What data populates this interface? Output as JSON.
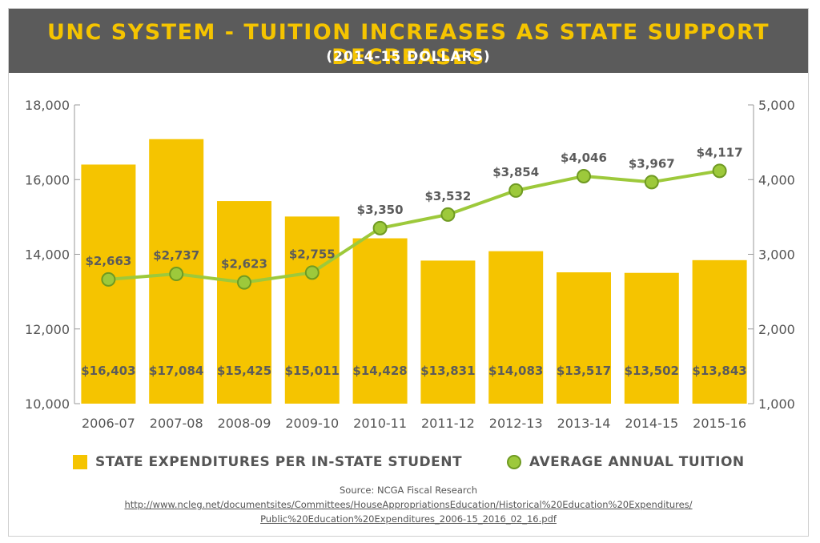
{
  "header": {
    "title": "UNC SYSTEM - TUITION INCREASES AS STATE SUPPORT DECREASES",
    "subtitle": "(2014-15 DOLLARS)"
  },
  "legend": {
    "bars_label": "STATE EXPENDITURES PER IN-STATE STUDENT",
    "line_label": "AVERAGE ANNUAL TUITION"
  },
  "source": {
    "text": "Source: NCGA Fiscal Research",
    "link_line1": "http://www.ncleg.net/documentsites/Committees/HouseAppropriationsEducation/Historical%20Education%20Expenditures/",
    "link_line2": "Public%20Education%20Expenditures_2006-15_2016_02_16.pdf"
  },
  "colors": {
    "bar": "#f5c400",
    "line": "#9dc93b",
    "marker_stroke": "#6f9a22",
    "header_bg": "#5b5b5b",
    "title": "#f5c400"
  },
  "chart_data": {
    "type": "bar",
    "categories": [
      "2006-07",
      "2007-08",
      "2008-09",
      "2009-10",
      "2010-11",
      "2011-12",
      "2012-13",
      "2013-14",
      "2014-15",
      "2015-16"
    ],
    "series": [
      {
        "name": "STATE EXPENDITURES PER IN-STATE STUDENT",
        "type": "bar",
        "axis": "left",
        "values": [
          16403,
          17084,
          15425,
          15011,
          14428,
          13831,
          14083,
          13517,
          13502,
          13843
        ],
        "labels": [
          "$16,403",
          "$17,084",
          "$15,425",
          "$15,011",
          "$14,428",
          "$13,831",
          "$14,083",
          "$13,517",
          "$13,502",
          "$13,843"
        ]
      },
      {
        "name": "AVERAGE ANNUAL TUITION",
        "type": "line",
        "axis": "right",
        "values": [
          2663,
          2737,
          2623,
          2755,
          3350,
          3532,
          3854,
          4046,
          3967,
          4117
        ],
        "labels": [
          "$2,663",
          "$2,737",
          "$2,623",
          "$2,755",
          "$3,350",
          "$3,532",
          "$3,854",
          "$4,046",
          "$3,967",
          "$4,117"
        ]
      }
    ],
    "y_left": {
      "lim": [
        10000,
        18000
      ],
      "ticks": [
        10000,
        12000,
        14000,
        16000,
        18000
      ],
      "tick_labels": [
        "10,000",
        "12,000",
        "14,000",
        "16,000",
        "18,000"
      ]
    },
    "y_right": {
      "lim": [
        1000,
        5000
      ],
      "ticks": [
        1000,
        2000,
        3000,
        4000,
        5000
      ],
      "tick_labels": [
        "1,000",
        "2,000",
        "3,000",
        "4,000",
        "5,000"
      ]
    },
    "grid": false,
    "legend_position": "bottom"
  }
}
